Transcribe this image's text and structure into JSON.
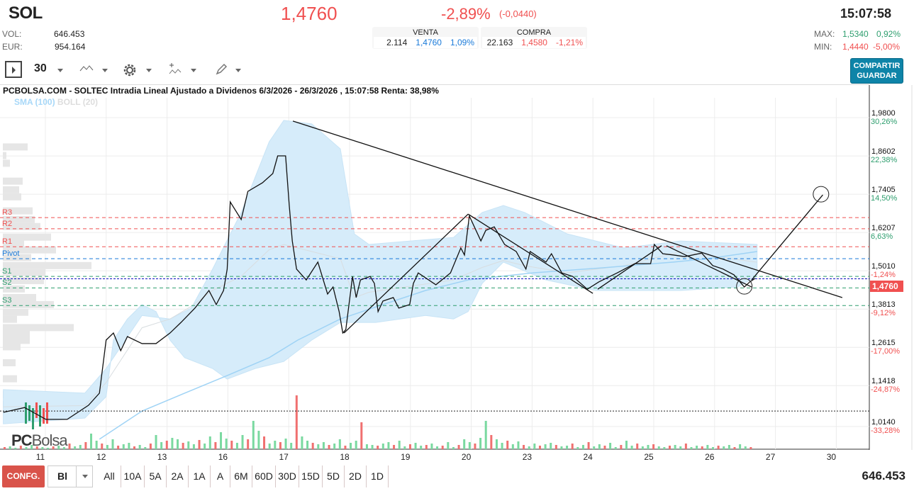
{
  "header": {
    "ticker": "SOL",
    "price": "1,4760",
    "change_pct": "-2,89%",
    "change_abs": "(-0,0440)",
    "time": "15:07:58",
    "vol_label": "VOL:",
    "vol": "646.453",
    "eur_label": "EUR:",
    "eur": "954.164",
    "venta": {
      "label": "VENTA",
      "qty": "2.114",
      "price": "1,4760",
      "pct": "1,09%"
    },
    "compra": {
      "label": "COMPRA",
      "qty": "22.163",
      "price": "1,4580",
      "pct": "-1,21%"
    },
    "max_label": "MAX:",
    "max": "1,5340",
    "max_pct": "0,92%",
    "min_label": "MIN:",
    "min": "1,4440",
    "min_pct": "-5,00%"
  },
  "toolbar": {
    "interval": "30",
    "share_label": "COMPARTIR",
    "save_label": "GUARDAR",
    "icons": [
      "panel-toggle-icon",
      "line-chart-icon",
      "gear-icon",
      "indicators-icon",
      "pencil-icon"
    ]
  },
  "chart": {
    "title": "PCBOLSA.COM - SOLTEC Intradia Lineal Ajustado a Dividenos 6/3/2026 - 26/3/2026 , 15:07:58 Renta: 38,98%",
    "legend_sma": "SMA (100)",
    "legend_boll": "BOLL (20)",
    "logo": "PCBolsa"
  },
  "colors": {
    "up": "#f05050",
    "down_green": "#2e9e6e",
    "blue": "#1a7ad9",
    "band": "#d6ecfa",
    "sma": "#9fd3f5",
    "accent": "#0e84a8"
  },
  "chart_data": {
    "type": "line",
    "x_tick_labels": [
      "11",
      "12",
      "13",
      "16",
      "17",
      "18",
      "19",
      "20",
      "23",
      "24",
      "25",
      "26",
      "27",
      "30"
    ],
    "y_ticks": [
      {
        "v": "1,9800",
        "p": 1.98,
        "pct": "30,26%"
      },
      {
        "v": "1,8602",
        "p": 1.8602,
        "pct": "22,38%"
      },
      {
        "v": "1,7405",
        "p": 1.7405,
        "pct": "14,50%"
      },
      {
        "v": "1,6207",
        "p": 1.6207,
        "pct": "6,63%"
      },
      {
        "v": "1,5010",
        "p": 1.501,
        "pct": "-1,24%"
      },
      {
        "v": "1,3813",
        "p": 1.3813,
        "pct": "-9,12%"
      },
      {
        "v": "1,2615",
        "p": 1.2615,
        "pct": "-17,00%"
      },
      {
        "v": "1,1418",
        "p": 1.1418,
        "pct": "-24,87%"
      },
      {
        "v": "1,0140",
        "p": 1.014,
        "pct": "-33,28%"
      }
    ],
    "ylim": [
      1.014,
      1.98
    ],
    "last_price": {
      "label": "1,4760",
      "p": 1.476
    },
    "reference_line": 1.049,
    "pivots": [
      {
        "name": "R3",
        "p": 1.654,
        "color": "#f05050"
      },
      {
        "name": "R2",
        "p": 1.619,
        "color": "#f05050"
      },
      {
        "name": "R1",
        "p": 1.563,
        "color": "#f05050"
      },
      {
        "name": "Pivot",
        "p": 1.5255,
        "color": "#1a7ad9"
      },
      {
        "name": "S1",
        "p": 1.47,
        "color": "#2e9e6e"
      },
      {
        "name": "S2",
        "p": 1.434,
        "color": "#2e9e6e"
      },
      {
        "name": "S3",
        "p": 1.379,
        "color": "#2e9e6e"
      }
    ],
    "price": [
      [
        -0.61,
        1.045
      ],
      [
        -0.26,
        1.06
      ],
      [
        0.09,
        1.023
      ],
      [
        0.44,
        1.023
      ],
      [
        0.79,
        1.067
      ],
      [
        0.97,
        1.105
      ],
      [
        1.08,
        1.271
      ],
      [
        1.2,
        1.293
      ],
      [
        1.32,
        1.238
      ],
      [
        1.43,
        1.282
      ],
      [
        1.67,
        1.26
      ],
      [
        1.9,
        1.26
      ],
      [
        2.13,
        1.293
      ],
      [
        2.31,
        1.326
      ],
      [
        2.54,
        1.371
      ],
      [
        2.77,
        1.426
      ],
      [
        2.89,
        1.382
      ],
      [
        3.01,
        1.426
      ],
      [
        3.07,
        1.493
      ],
      [
        3.12,
        1.703
      ],
      [
        3.3,
        1.648
      ],
      [
        3.41,
        1.736
      ],
      [
        3.65,
        1.763
      ],
      [
        3.82,
        1.792
      ],
      [
        3.9,
        1.847
      ],
      [
        4.03,
        1.847
      ],
      [
        4.09,
        1.692
      ],
      [
        4.14,
        1.581
      ],
      [
        4.21,
        1.493
      ],
      [
        4.37,
        1.459
      ],
      [
        4.56,
        1.515
      ],
      [
        4.72,
        1.415
      ],
      [
        4.81,
        1.437
      ],
      [
        4.91,
        1.36
      ],
      [
        4.97,
        1.293
      ],
      [
        5.02,
        1.304
      ],
      [
        5.13,
        1.47
      ],
      [
        5.19,
        1.404
      ],
      [
        5.26,
        1.459
      ],
      [
        5.42,
        1.47
      ],
      [
        5.49,
        1.448
      ],
      [
        5.55,
        1.36
      ],
      [
        5.63,
        1.393
      ],
      [
        5.8,
        1.404
      ],
      [
        5.89,
        1.371
      ],
      [
        6.07,
        1.382
      ],
      [
        6.13,
        1.448
      ],
      [
        6.21,
        1.481
      ],
      [
        6.5,
        1.444
      ],
      [
        6.74,
        1.481
      ],
      [
        6.91,
        1.559
      ],
      [
        6.97,
        1.537
      ],
      [
        7.05,
        1.659
      ],
      [
        7.24,
        1.581
      ],
      [
        7.32,
        1.614
      ],
      [
        7.46,
        1.625
      ],
      [
        7.63,
        1.57
      ],
      [
        7.82,
        1.548
      ],
      [
        7.98,
        1.493
      ],
      [
        8.05,
        1.548
      ],
      [
        8.31,
        1.515
      ],
      [
        8.4,
        1.541
      ],
      [
        8.57,
        1.481
      ],
      [
        8.75,
        1.47
      ],
      [
        8.99,
        1.43
      ],
      [
        9.18,
        1.453
      ],
      [
        9.48,
        1.481
      ],
      [
        9.77,
        1.51
      ],
      [
        10.03,
        1.51
      ],
      [
        10.09,
        1.57
      ],
      [
        10.23,
        1.541
      ],
      [
        10.41,
        1.537
      ],
      [
        10.59,
        1.532
      ],
      [
        10.87,
        1.543
      ],
      [
        11.05,
        1.504
      ],
      [
        11.22,
        1.493
      ],
      [
        11.4,
        1.475
      ],
      [
        11.57,
        1.437
      ],
      [
        11.66,
        1.453
      ],
      [
        11.75,
        1.464
      ]
    ],
    "boll_upper": [
      [
        -0.61,
        1.116
      ],
      [
        0.73,
        1.105
      ],
      [
        1.08,
        1.182
      ],
      [
        1.67,
        1.348
      ],
      [
        2.13,
        1.337
      ],
      [
        2.48,
        1.371
      ],
      [
        2.83,
        1.493
      ],
      [
        3.3,
        1.67
      ],
      [
        3.76,
        1.891
      ],
      [
        4.0,
        1.958
      ],
      [
        4.46,
        1.947
      ],
      [
        4.93,
        1.869
      ],
      [
        5.16,
        1.603
      ],
      [
        5.4,
        1.57
      ],
      [
        6.79,
        1.592
      ],
      [
        7.26,
        1.67
      ],
      [
        7.61,
        1.692
      ],
      [
        7.96,
        1.67
      ],
      [
        8.66,
        1.603
      ],
      [
        9.59,
        1.559
      ],
      [
        10.52,
        1.581
      ],
      [
        11.78,
        1.57
      ]
    ],
    "boll_lower": [
      [
        -0.61,
        1.009
      ],
      [
        0.73,
        1.027
      ],
      [
        1.08,
        1.094
      ],
      [
        1.2,
        1.271
      ],
      [
        1.43,
        1.337
      ],
      [
        1.67,
        1.382
      ],
      [
        1.9,
        1.36
      ],
      [
        2.13,
        1.271
      ],
      [
        2.37,
        1.216
      ],
      [
        2.83,
        1.182
      ],
      [
        3.07,
        1.149
      ],
      [
        3.53,
        1.182
      ],
      [
        4.0,
        1.204
      ],
      [
        4.46,
        1.271
      ],
      [
        4.93,
        1.326
      ],
      [
        5.51,
        1.326
      ],
      [
        6.33,
        1.348
      ],
      [
        6.79,
        1.337
      ],
      [
        7.03,
        1.36
      ],
      [
        7.26,
        1.448
      ],
      [
        7.61,
        1.515
      ],
      [
        8.31,
        1.459
      ],
      [
        9.13,
        1.426
      ],
      [
        10.52,
        1.426
      ],
      [
        11.46,
        1.437
      ],
      [
        11.78,
        1.47
      ]
    ],
    "sma": [
      [
        0.97,
        0.961
      ],
      [
        1.67,
        1.049
      ],
      [
        2.37,
        1.105
      ],
      [
        3.07,
        1.16
      ],
      [
        3.76,
        1.216
      ],
      [
        4.23,
        1.271
      ],
      [
        4.93,
        1.337
      ],
      [
        5.63,
        1.382
      ],
      [
        6.33,
        1.426
      ],
      [
        7.03,
        1.459
      ],
      [
        8.08,
        1.481
      ],
      [
        9.24,
        1.497
      ],
      [
        10.41,
        1.515
      ],
      [
        10.99,
        1.526
      ],
      [
        11.78,
        1.548
      ]
    ],
    "trendlines": [
      [
        [
          4.15,
          1.956
        ],
        [
          13.18,
          1.404
        ]
      ],
      [
        [
          4.99,
          1.293
        ],
        [
          7.03,
          1.665
        ]
      ],
      [
        [
          7.03,
          1.665
        ],
        [
          9.08,
          1.417
        ]
      ],
      [
        [
          9.16,
          1.43
        ],
        [
          10.21,
          1.566
        ]
      ],
      [
        [
          10.29,
          1.566
        ],
        [
          11.69,
          1.437
        ]
      ],
      [
        [
          11.69,
          1.459
        ],
        [
          12.86,
          1.725
        ]
      ]
    ],
    "circles": [
      [
        12.83,
        1.727
      ],
      [
        11.57,
        1.439
      ]
    ],
    "volume": [
      3,
      4,
      2,
      5,
      3,
      6,
      4,
      3,
      2,
      4,
      5,
      3,
      8,
      4,
      6,
      10,
      22,
      12,
      8,
      6,
      14,
      5,
      7,
      9,
      4,
      6,
      3,
      8,
      20,
      10,
      12,
      16,
      14,
      9,
      11,
      7,
      13,
      8,
      18,
      10,
      24,
      15,
      12,
      9,
      20,
      14,
      40,
      26,
      18,
      8,
      12,
      10,
      15,
      9,
      76,
      18,
      12,
      9,
      7,
      10,
      6,
      8,
      14,
      5,
      9,
      12,
      38,
      7,
      6,
      5,
      8,
      10,
      6,
      12,
      4,
      7,
      9,
      5,
      6,
      8,
      4,
      5,
      10,
      3,
      6,
      14,
      10,
      8,
      16,
      40,
      20,
      14,
      9,
      12,
      7,
      11,
      6,
      4,
      8,
      5,
      7,
      9,
      6,
      4,
      5,
      8,
      3,
      6,
      10,
      4,
      7,
      5,
      9,
      3,
      6,
      12,
      5,
      8,
      4,
      6,
      7,
      4,
      3,
      5,
      6,
      4,
      8,
      3,
      5,
      4,
      6,
      3,
      5,
      4,
      6,
      3,
      7,
      4,
      3
    ],
    "volume_profile": [
      [
        1.875,
        35
      ],
      [
        1.848,
        5
      ],
      [
        1.824,
        10
      ],
      [
        1.768,
        28
      ],
      [
        1.741,
        23
      ],
      [
        1.719,
        26
      ],
      [
        1.675,
        42
      ],
      [
        1.648,
        45
      ],
      [
        1.626,
        53
      ],
      [
        1.593,
        68
      ],
      [
        1.575,
        30
      ],
      [
        1.553,
        75
      ],
      [
        1.529,
        40
      ],
      [
        1.504,
        125
      ],
      [
        1.482,
        60
      ],
      [
        1.457,
        58
      ],
      [
        1.431,
        31
      ],
      [
        1.404,
        47
      ],
      [
        1.382,
        72
      ],
      [
        1.358,
        36
      ],
      [
        1.336,
        20
      ],
      [
        1.31,
        100
      ],
      [
        1.29,
        38
      ],
      [
        1.27,
        38
      ],
      [
        1.25,
        25
      ],
      [
        1.2,
        18
      ],
      [
        1.15,
        20
      ],
      [
        1.1,
        45
      ],
      [
        1.07,
        55
      ]
    ]
  },
  "xaxis_label_extra": "",
  "bottom": {
    "config": "CONFG.",
    "scale": "Bl",
    "ranges": [
      "All",
      "10A",
      "5A",
      "2A",
      "1A",
      "A",
      "6M",
      "60D",
      "30D",
      "15D",
      "5D",
      "2D",
      "1D"
    ],
    "volume": "646.453"
  }
}
